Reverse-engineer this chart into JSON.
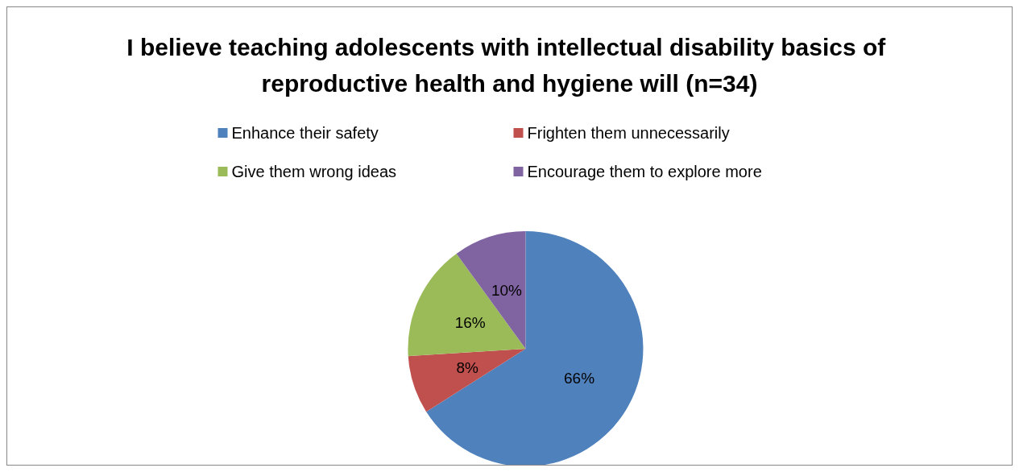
{
  "chart_data": {
    "type": "pie",
    "title": "I believe teaching adolescents with intellectual disability basics of reproductive health and hygiene will (n=34)",
    "categories": [
      "Enhance their safety",
      "Frighten them unnecessarily",
      "Give them wrong ideas",
      "Encourage them to explore more"
    ],
    "values": [
      66,
      8,
      16,
      10
    ],
    "colors": [
      "#4f81bd",
      "#c0504d",
      "#9bbb59",
      "#8064a2"
    ],
    "value_labels": [
      "66%",
      "8%",
      "16%",
      "10%"
    ],
    "legend": "top"
  }
}
